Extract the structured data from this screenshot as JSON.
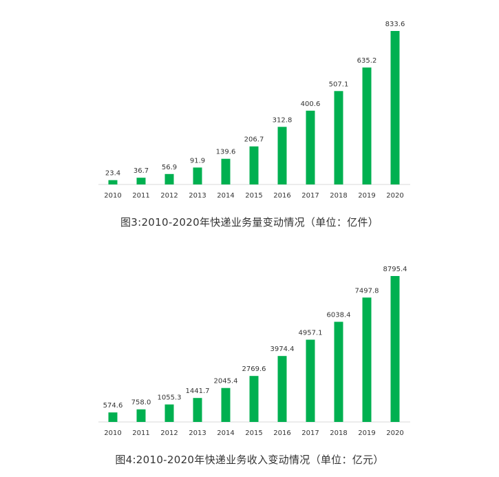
{
  "chart_data": [
    {
      "type": "bar",
      "title": "",
      "xlabel": "",
      "ylabel": "",
      "categories": [
        "2010",
        "2011",
        "2012",
        "2013",
        "2014",
        "2015",
        "2016",
        "2017",
        "2018",
        "2019",
        "2020"
      ],
      "values": [
        23.4,
        36.7,
        56.9,
        91.9,
        139.6,
        206.7,
        312.8,
        400.6,
        507.1,
        635.2,
        833.6
      ],
      "value_labels": [
        "23.4",
        "36.7",
        "56.9",
        "91.9",
        "139.6",
        "206.7",
        "312.8",
        "400.6",
        "507.1",
        "635.2",
        "833.6"
      ],
      "ylim": [
        0,
        833.6
      ],
      "grid": false,
      "legend": "none",
      "bar_color": "#00b050"
    },
    {
      "type": "bar",
      "title": "",
      "xlabel": "",
      "ylabel": "",
      "categories": [
        "2010",
        "2011",
        "2012",
        "2013",
        "2014",
        "2015",
        "2016",
        "2017",
        "2018",
        "2019",
        "2020"
      ],
      "values": [
        574.6,
        758.0,
        1055.3,
        1441.7,
        2045.4,
        2769.6,
        3974.4,
        4957.1,
        6038.4,
        7497.8,
        8795.4
      ],
      "value_labels": [
        "574.6",
        "758.0",
        "1055.3",
        "1441.7",
        "2045.4",
        "2769.6",
        "3974.4",
        "4957.1",
        "6038.4",
        "7497.8",
        "8795.4"
      ],
      "ylim": [
        0,
        8795.4
      ],
      "grid": false,
      "legend": "none",
      "bar_color": "#00b050"
    }
  ],
  "captions": {
    "chart1": "图3:2010-2020年快递业务量变动情况（单位：亿件）",
    "chart2": "图4:2010-2020年快递业务收入变动情况（单位：亿元）"
  },
  "axis_color": "#d9d9d9"
}
